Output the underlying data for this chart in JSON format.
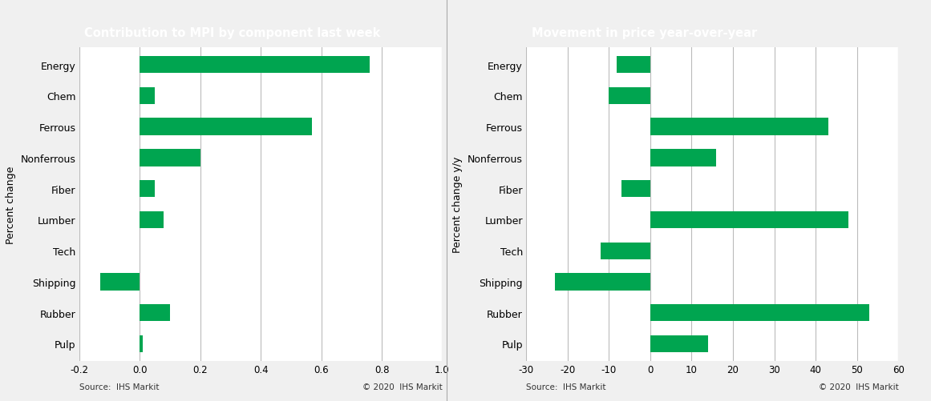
{
  "categories": [
    "Energy",
    "Chem",
    "Ferrous",
    "Nonferrous",
    "Fiber",
    "Lumber",
    "Tech",
    "Shipping",
    "Rubber",
    "Pulp"
  ],
  "left_values": [
    0.76,
    0.05,
    0.57,
    0.2,
    0.05,
    0.08,
    0.0,
    -0.13,
    0.1,
    0.01
  ],
  "right_values": [
    -8,
    -10,
    43,
    16,
    -7,
    48,
    -12,
    -23,
    53,
    14
  ],
  "left_title": "Contribution to MPI by component last week",
  "right_title": "Movement in price year-over-year",
  "left_ylabel": "Percent change",
  "right_ylabel": "Percent change y/y",
  "left_xlim": [
    -0.2,
    1.0
  ],
  "right_xlim": [
    -30,
    60
  ],
  "left_xticks": [
    -0.2,
    0.0,
    0.2,
    0.4,
    0.6,
    0.8,
    1.0
  ],
  "right_xticks": [
    -30,
    -20,
    -10,
    0,
    10,
    20,
    30,
    40,
    50,
    60
  ],
  "bar_color": "#00A550",
  "title_bg_color": "#7f7f7f",
  "title_text_color": "#ffffff",
  "plot_bg_color": "#f0f0f0",
  "axes_bg_color": "#ffffff",
  "grid_color": "#bbbbbb",
  "source_left": "Source:  IHS Markit",
  "source_right": "Source:  IHS Markit",
  "copyright_left": "© 2020  IHS Markit",
  "copyright_right": "© 2020  IHS Markit",
  "title_fontsize": 10.5,
  "label_fontsize": 9,
  "tick_fontsize": 8.5,
  "source_fontsize": 7.5,
  "bar_height": 0.55
}
